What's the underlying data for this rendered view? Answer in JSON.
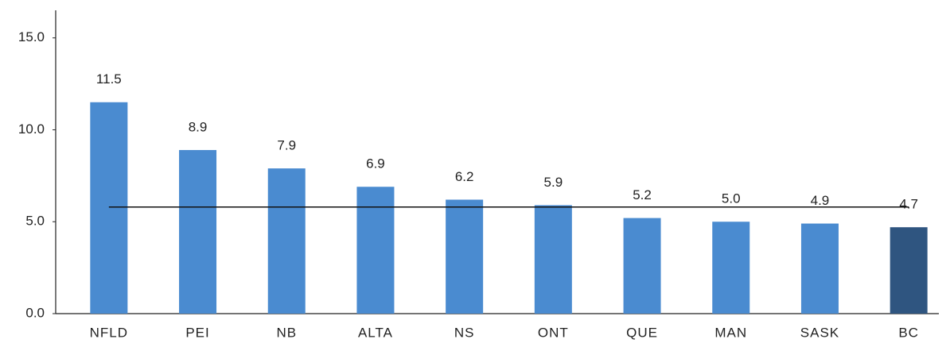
{
  "chart_data": {
    "type": "bar",
    "categories": [
      "NFLD",
      "PEI",
      "NB",
      "ALTA",
      "NS",
      "ONT",
      "QUE",
      "MAN",
      "SASK",
      "BC"
    ],
    "values": [
      11.5,
      8.9,
      7.9,
      6.9,
      6.2,
      5.9,
      5.2,
      5.0,
      4.9,
      4.7
    ],
    "value_labels": [
      "11.5",
      "8.9",
      "7.9",
      "6.9",
      "6.2",
      "5.9",
      "5.2",
      "5.0",
      "4.9",
      "4.7"
    ],
    "colors": [
      "#4a8bd0",
      "#4a8bd0",
      "#4a8bd0",
      "#4a8bd0",
      "#4a8bd0",
      "#4a8bd0",
      "#4a8bd0",
      "#4a8bd0",
      "#4a8bd0",
      "#2f5580"
    ],
    "reference_line": 5.8,
    "ylim": [
      0,
      16.5
    ],
    "yticks": [
      {
        "value": 0,
        "label": "0.0"
      },
      {
        "value": 5,
        "label": "5.0"
      },
      {
        "value": 10,
        "label": "10.0"
      },
      {
        "value": 15,
        "label": "15.0"
      }
    ],
    "grid": false
  }
}
